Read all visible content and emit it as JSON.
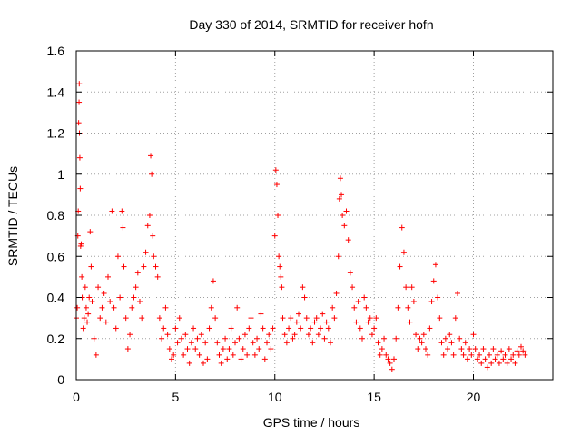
{
  "chart_data": {
    "type": "scatter",
    "title": "Day 330 of 2014, SRMTID for receiver hofn",
    "xlabel": "GPS time / hours",
    "ylabel": "SRMTID / TECUs",
    "xlim": [
      0,
      24
    ],
    "ylim": [
      0,
      1.6
    ],
    "x_ticks": [
      0,
      5,
      10,
      15,
      20
    ],
    "x_tick_labels": [
      "0",
      "5",
      "10",
      "15",
      "20"
    ],
    "y_ticks": [
      0,
      0.2,
      0.4,
      0.6,
      0.8,
      1.0,
      1.2,
      1.4,
      1.6
    ],
    "y_tick_labels": [
      "0",
      "0.2",
      "0.4",
      "0.6",
      "0.8",
      "1",
      "1.2",
      "1.4",
      "1.6"
    ],
    "grid": true,
    "marker": "+",
    "color": "#ff0000",
    "series": [
      {
        "name": "SRMTID",
        "points": [
          [
            0.0,
            0.3
          ],
          [
            0.05,
            0.35
          ],
          [
            0.08,
            0.7
          ],
          [
            0.1,
            0.82
          ],
          [
            0.12,
            1.25
          ],
          [
            0.14,
            1.35
          ],
          [
            0.15,
            1.44
          ],
          [
            0.16,
            1.2
          ],
          [
            0.18,
            1.08
          ],
          [
            0.2,
            0.93
          ],
          [
            0.22,
            0.65
          ],
          [
            0.25,
            0.66
          ],
          [
            0.28,
            0.5
          ],
          [
            0.3,
            0.4
          ],
          [
            0.35,
            0.25
          ],
          [
            0.4,
            0.3
          ],
          [
            0.45,
            0.45
          ],
          [
            0.5,
            0.35
          ],
          [
            0.55,
            0.28
          ],
          [
            0.6,
            0.32
          ],
          [
            0.65,
            0.4
          ],
          [
            0.7,
            0.72
          ],
          [
            0.75,
            0.55
          ],
          [
            0.8,
            0.38
          ],
          [
            0.9,
            0.2
          ],
          [
            1.0,
            0.12
          ],
          [
            1.1,
            0.45
          ],
          [
            1.2,
            0.3
          ],
          [
            1.3,
            0.35
          ],
          [
            1.4,
            0.42
          ],
          [
            1.5,
            0.28
          ],
          [
            1.6,
            0.5
          ],
          [
            1.7,
            0.38
          ],
          [
            1.8,
            0.82
          ],
          [
            1.9,
            0.35
          ],
          [
            2.0,
            0.25
          ],
          [
            2.1,
            0.6
          ],
          [
            2.2,
            0.4
          ],
          [
            2.3,
            0.82
          ],
          [
            2.35,
            0.74
          ],
          [
            2.4,
            0.55
          ],
          [
            2.5,
            0.3
          ],
          [
            2.6,
            0.15
          ],
          [
            2.7,
            0.22
          ],
          [
            2.8,
            0.35
          ],
          [
            2.9,
            0.4
          ],
          [
            3.0,
            0.45
          ],
          [
            3.1,
            0.52
          ],
          [
            3.2,
            0.38
          ],
          [
            3.3,
            0.3
          ],
          [
            3.4,
            0.55
          ],
          [
            3.5,
            0.62
          ],
          [
            3.6,
            0.75
          ],
          [
            3.7,
            0.8
          ],
          [
            3.75,
            1.09
          ],
          [
            3.8,
            1.0
          ],
          [
            3.85,
            0.7
          ],
          [
            3.9,
            0.6
          ],
          [
            4.0,
            0.55
          ],
          [
            4.1,
            0.5
          ],
          [
            4.2,
            0.3
          ],
          [
            4.3,
            0.2
          ],
          [
            4.4,
            0.25
          ],
          [
            4.5,
            0.35
          ],
          [
            4.6,
            0.22
          ],
          [
            4.7,
            0.15
          ],
          [
            4.8,
            0.1
          ],
          [
            4.9,
            0.12
          ],
          [
            5.0,
            0.25
          ],
          [
            5.1,
            0.18
          ],
          [
            5.2,
            0.3
          ],
          [
            5.3,
            0.2
          ],
          [
            5.4,
            0.12
          ],
          [
            5.5,
            0.22
          ],
          [
            5.6,
            0.15
          ],
          [
            5.7,
            0.08
          ],
          [
            5.8,
            0.18
          ],
          [
            5.9,
            0.25
          ],
          [
            6.0,
            0.15
          ],
          [
            6.1,
            0.2
          ],
          [
            6.2,
            0.12
          ],
          [
            6.3,
            0.22
          ],
          [
            6.4,
            0.08
          ],
          [
            6.5,
            0.18
          ],
          [
            6.6,
            0.1
          ],
          [
            6.7,
            0.25
          ],
          [
            6.8,
            0.35
          ],
          [
            6.9,
            0.48
          ],
          [
            7.0,
            0.3
          ],
          [
            7.1,
            0.18
          ],
          [
            7.2,
            0.12
          ],
          [
            7.3,
            0.08
          ],
          [
            7.4,
            0.15
          ],
          [
            7.5,
            0.2
          ],
          [
            7.6,
            0.1
          ],
          [
            7.7,
            0.15
          ],
          [
            7.8,
            0.25
          ],
          [
            7.9,
            0.12
          ],
          [
            8.0,
            0.18
          ],
          [
            8.1,
            0.35
          ],
          [
            8.2,
            0.2
          ],
          [
            8.3,
            0.1
          ],
          [
            8.4,
            0.15
          ],
          [
            8.5,
            0.22
          ],
          [
            8.6,
            0.12
          ],
          [
            8.7,
            0.25
          ],
          [
            8.8,
            0.3
          ],
          [
            8.9,
            0.18
          ],
          [
            9.0,
            0.12
          ],
          [
            9.1,
            0.2
          ],
          [
            9.2,
            0.15
          ],
          [
            9.3,
            0.32
          ],
          [
            9.4,
            0.25
          ],
          [
            9.5,
            0.1
          ],
          [
            9.6,
            0.18
          ],
          [
            9.7,
            0.22
          ],
          [
            9.8,
            0.15
          ],
          [
            9.9,
            0.25
          ],
          [
            10.0,
            0.7
          ],
          [
            10.05,
            1.02
          ],
          [
            10.1,
            0.95
          ],
          [
            10.15,
            0.8
          ],
          [
            10.2,
            0.6
          ],
          [
            10.25,
            0.55
          ],
          [
            10.3,
            0.5
          ],
          [
            10.35,
            0.45
          ],
          [
            10.4,
            0.3
          ],
          [
            10.5,
            0.22
          ],
          [
            10.6,
            0.18
          ],
          [
            10.7,
            0.25
          ],
          [
            10.8,
            0.3
          ],
          [
            10.9,
            0.2
          ],
          [
            11.0,
            0.22
          ],
          [
            11.1,
            0.28
          ],
          [
            11.2,
            0.32
          ],
          [
            11.3,
            0.25
          ],
          [
            11.4,
            0.45
          ],
          [
            11.5,
            0.4
          ],
          [
            11.6,
            0.3
          ],
          [
            11.7,
            0.22
          ],
          [
            11.8,
            0.25
          ],
          [
            11.9,
            0.18
          ],
          [
            12.0,
            0.28
          ],
          [
            12.1,
            0.3
          ],
          [
            12.2,
            0.22
          ],
          [
            12.3,
            0.25
          ],
          [
            12.4,
            0.32
          ],
          [
            12.5,
            0.2
          ],
          [
            12.6,
            0.28
          ],
          [
            12.7,
            0.25
          ],
          [
            12.8,
            0.18
          ],
          [
            12.9,
            0.35
          ],
          [
            13.0,
            0.3
          ],
          [
            13.1,
            0.42
          ],
          [
            13.2,
            0.6
          ],
          [
            13.25,
            0.88
          ],
          [
            13.3,
            0.98
          ],
          [
            13.35,
            0.9
          ],
          [
            13.4,
            0.8
          ],
          [
            13.5,
            0.75
          ],
          [
            13.6,
            0.82
          ],
          [
            13.7,
            0.68
          ],
          [
            13.8,
            0.52
          ],
          [
            13.9,
            0.45
          ],
          [
            14.0,
            0.35
          ],
          [
            14.1,
            0.28
          ],
          [
            14.2,
            0.38
          ],
          [
            14.3,
            0.25
          ],
          [
            14.4,
            0.2
          ],
          [
            14.5,
            0.4
          ],
          [
            14.6,
            0.35
          ],
          [
            14.7,
            0.28
          ],
          [
            14.8,
            0.3
          ],
          [
            14.9,
            0.22
          ],
          [
            15.0,
            0.25
          ],
          [
            15.1,
            0.3
          ],
          [
            15.2,
            0.18
          ],
          [
            15.3,
            0.12
          ],
          [
            15.4,
            0.15
          ],
          [
            15.5,
            0.2
          ],
          [
            15.6,
            0.12
          ],
          [
            15.7,
            0.1
          ],
          [
            15.8,
            0.08
          ],
          [
            15.9,
            0.05
          ],
          [
            16.0,
            0.1
          ],
          [
            16.1,
            0.2
          ],
          [
            16.2,
            0.35
          ],
          [
            16.3,
            0.55
          ],
          [
            16.4,
            0.74
          ],
          [
            16.5,
            0.62
          ],
          [
            16.6,
            0.45
          ],
          [
            16.7,
            0.35
          ],
          [
            16.8,
            0.28
          ],
          [
            16.9,
            0.45
          ],
          [
            17.0,
            0.38
          ],
          [
            17.1,
            0.22
          ],
          [
            17.2,
            0.15
          ],
          [
            17.3,
            0.2
          ],
          [
            17.4,
            0.18
          ],
          [
            17.5,
            0.22
          ],
          [
            17.6,
            0.15
          ],
          [
            17.7,
            0.12
          ],
          [
            17.8,
            0.25
          ],
          [
            17.9,
            0.38
          ],
          [
            18.0,
            0.48
          ],
          [
            18.1,
            0.56
          ],
          [
            18.2,
            0.4
          ],
          [
            18.3,
            0.3
          ],
          [
            18.4,
            0.18
          ],
          [
            18.5,
            0.12
          ],
          [
            18.6,
            0.2
          ],
          [
            18.7,
            0.15
          ],
          [
            18.8,
            0.22
          ],
          [
            18.9,
            0.18
          ],
          [
            19.0,
            0.12
          ],
          [
            19.1,
            0.3
          ],
          [
            19.2,
            0.42
          ],
          [
            19.3,
            0.2
          ],
          [
            19.4,
            0.15
          ],
          [
            19.5,
            0.12
          ],
          [
            19.6,
            0.18
          ],
          [
            19.7,
            0.1
          ],
          [
            19.8,
            0.15
          ],
          [
            19.9,
            0.12
          ],
          [
            20.0,
            0.22
          ],
          [
            20.1,
            0.15
          ],
          [
            20.2,
            0.1
          ],
          [
            20.3,
            0.12
          ],
          [
            20.4,
            0.08
          ],
          [
            20.5,
            0.15
          ],
          [
            20.6,
            0.1
          ],
          [
            20.7,
            0.06
          ],
          [
            20.8,
            0.12
          ],
          [
            20.9,
            0.08
          ],
          [
            21.0,
            0.15
          ],
          [
            21.1,
            0.1
          ],
          [
            21.2,
            0.12
          ],
          [
            21.3,
            0.08
          ],
          [
            21.4,
            0.14
          ],
          [
            21.5,
            0.1
          ],
          [
            21.6,
            0.12
          ],
          [
            21.7,
            0.08
          ],
          [
            21.8,
            0.15
          ],
          [
            21.9,
            0.1
          ],
          [
            22.0,
            0.12
          ],
          [
            22.1,
            0.08
          ],
          [
            22.2,
            0.14
          ],
          [
            22.3,
            0.12
          ],
          [
            22.4,
            0.16
          ],
          [
            22.5,
            0.14
          ],
          [
            22.6,
            0.12
          ]
        ]
      }
    ]
  }
}
